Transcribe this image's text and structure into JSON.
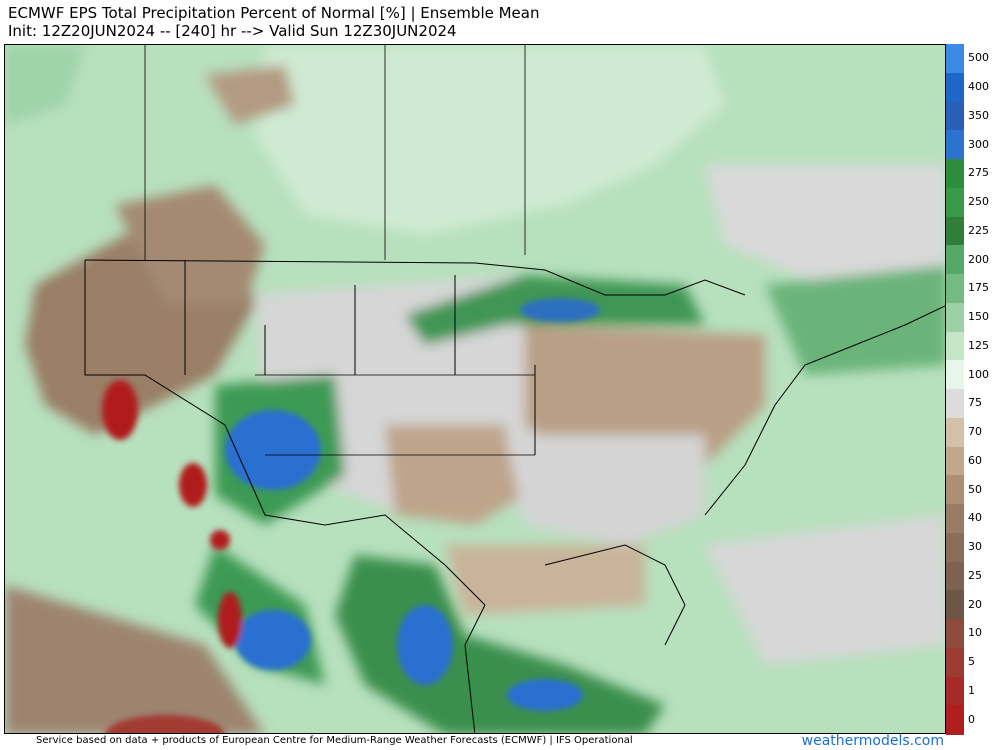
{
  "header": {
    "title": "ECMWF EPS Total Precipitation Percent of Normal [%] | Ensemble Mean",
    "subtitle": "Init: 12Z20JUN2024 -- [240] hr --> Valid Sun 12Z30JUN2024"
  },
  "colorbar": {
    "levels": [
      {
        "label": "500",
        "color": "#3a8be8"
      },
      {
        "label": "400",
        "color": "#1f66c9"
      },
      {
        "label": "350",
        "color": "#2a5fb8"
      },
      {
        "label": "300",
        "color": "#2b73cf"
      },
      {
        "label": "275",
        "color": "#2e8c3f"
      },
      {
        "label": "250",
        "color": "#3a9a4c"
      },
      {
        "label": "225",
        "color": "#2f7f3a"
      },
      {
        "label": "200",
        "color": "#55a866"
      },
      {
        "label": "175",
        "color": "#74bb82"
      },
      {
        "label": "150",
        "color": "#9bd1a4"
      },
      {
        "label": "125",
        "color": "#c2e6c6"
      },
      {
        "label": "100",
        "color": "#e8f5e9"
      },
      {
        "label": "75",
        "color": "#dcdcdc"
      },
      {
        "label": "70",
        "color": "#d4bfa8"
      },
      {
        "label": "60",
        "color": "#c2a78c"
      },
      {
        "label": "50",
        "color": "#ad8f74"
      },
      {
        "label": "40",
        "color": "#9a7c64"
      },
      {
        "label": "30",
        "color": "#8b6e58"
      },
      {
        "label": "25",
        "color": "#7d634f"
      },
      {
        "label": "20",
        "color": "#6e5646"
      },
      {
        "label": "10",
        "color": "#8e4b3c"
      },
      {
        "label": "5",
        "color": "#9c3b31"
      },
      {
        "label": "1",
        "color": "#a62b26"
      },
      {
        "label": "0",
        "color": "#b01e1e"
      }
    ]
  },
  "footer": {
    "credit": "Service based on data + products of European Centre for Medium-Range Weather Forecasts (ECMWF) | IFS Operational",
    "brand": "weathermodels.com"
  }
}
